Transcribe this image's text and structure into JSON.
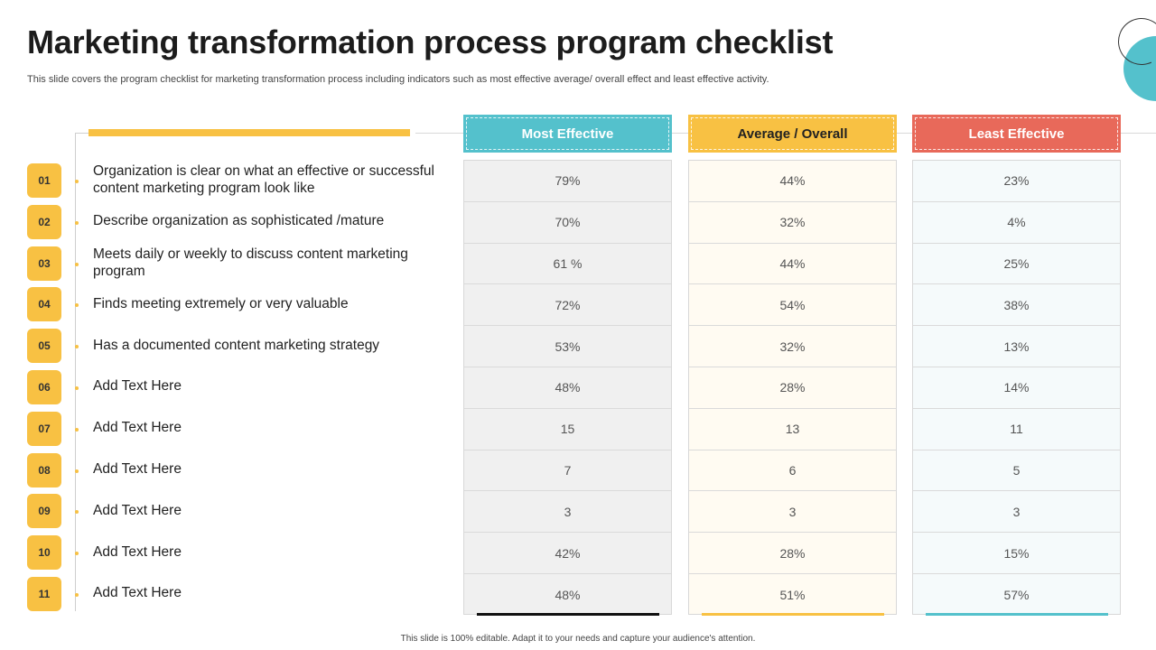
{
  "slide": {
    "title": "Marketing transformation process program checklist",
    "subtitle": "This slide covers the  program checklist for marketing transformation process including indicators such as most effective average/ overall effect and least effective activity.",
    "footer": "This slide is 100% editable. Adapt it to your needs and capture your audience's attention."
  },
  "columns": [
    {
      "label": "Most Effective",
      "color": "#54c1cc",
      "text_color": "#ffffff",
      "cell_bg": "#f0f0f0",
      "underline": "#111111"
    },
    {
      "label": "Average / Overall",
      "color": "#f8c143",
      "text_color": "#222222",
      "cell_bg": "#fffbf2",
      "underline": "#f8c143"
    },
    {
      "label": "Least Effective",
      "color": "#e8695a",
      "text_color": "#ffffff",
      "cell_bg": "#f5fafb",
      "underline": "#54c1cc"
    }
  ],
  "rows": [
    {
      "num": "01",
      "label": "Organization is clear on what an effective or successful content marketing program look like",
      "values": [
        "79%",
        "44%",
        "23%"
      ]
    },
    {
      "num": "02",
      "label": "Describe organization as sophisticated /mature",
      "values": [
        "70%",
        "32%",
        "4%"
      ]
    },
    {
      "num": "03",
      "label": "Meets daily or weekly to discuss content marketing program",
      "values": [
        "61 %",
        "44%",
        "25%"
      ]
    },
    {
      "num": "04",
      "label": "Finds meeting extremely or very valuable",
      "values": [
        "72%",
        "54%",
        "38%"
      ]
    },
    {
      "num": "05",
      "label": "Has a documented content marketing strategy",
      "values": [
        "53%",
        "32%",
        "13%"
      ]
    },
    {
      "num": "06",
      "label": "Add Text Here",
      "values": [
        "48%",
        "28%",
        "14%"
      ]
    },
    {
      "num": "07",
      "label": "Add Text Here",
      "values": [
        "15",
        "13",
        "11"
      ]
    },
    {
      "num": "08",
      "label": "Add Text Here",
      "values": [
        "7",
        "6",
        "5"
      ]
    },
    {
      "num": "09",
      "label": "Add Text Here",
      "values": [
        "3",
        "3",
        "3"
      ]
    },
    {
      "num": "10",
      "label": "Add Text Here",
      "values": [
        "42%",
        "28%",
        "15%"
      ]
    },
    {
      "num": "11",
      "label": "Add Text Here",
      "values": [
        "48%",
        "51%",
        "57%"
      ]
    }
  ]
}
